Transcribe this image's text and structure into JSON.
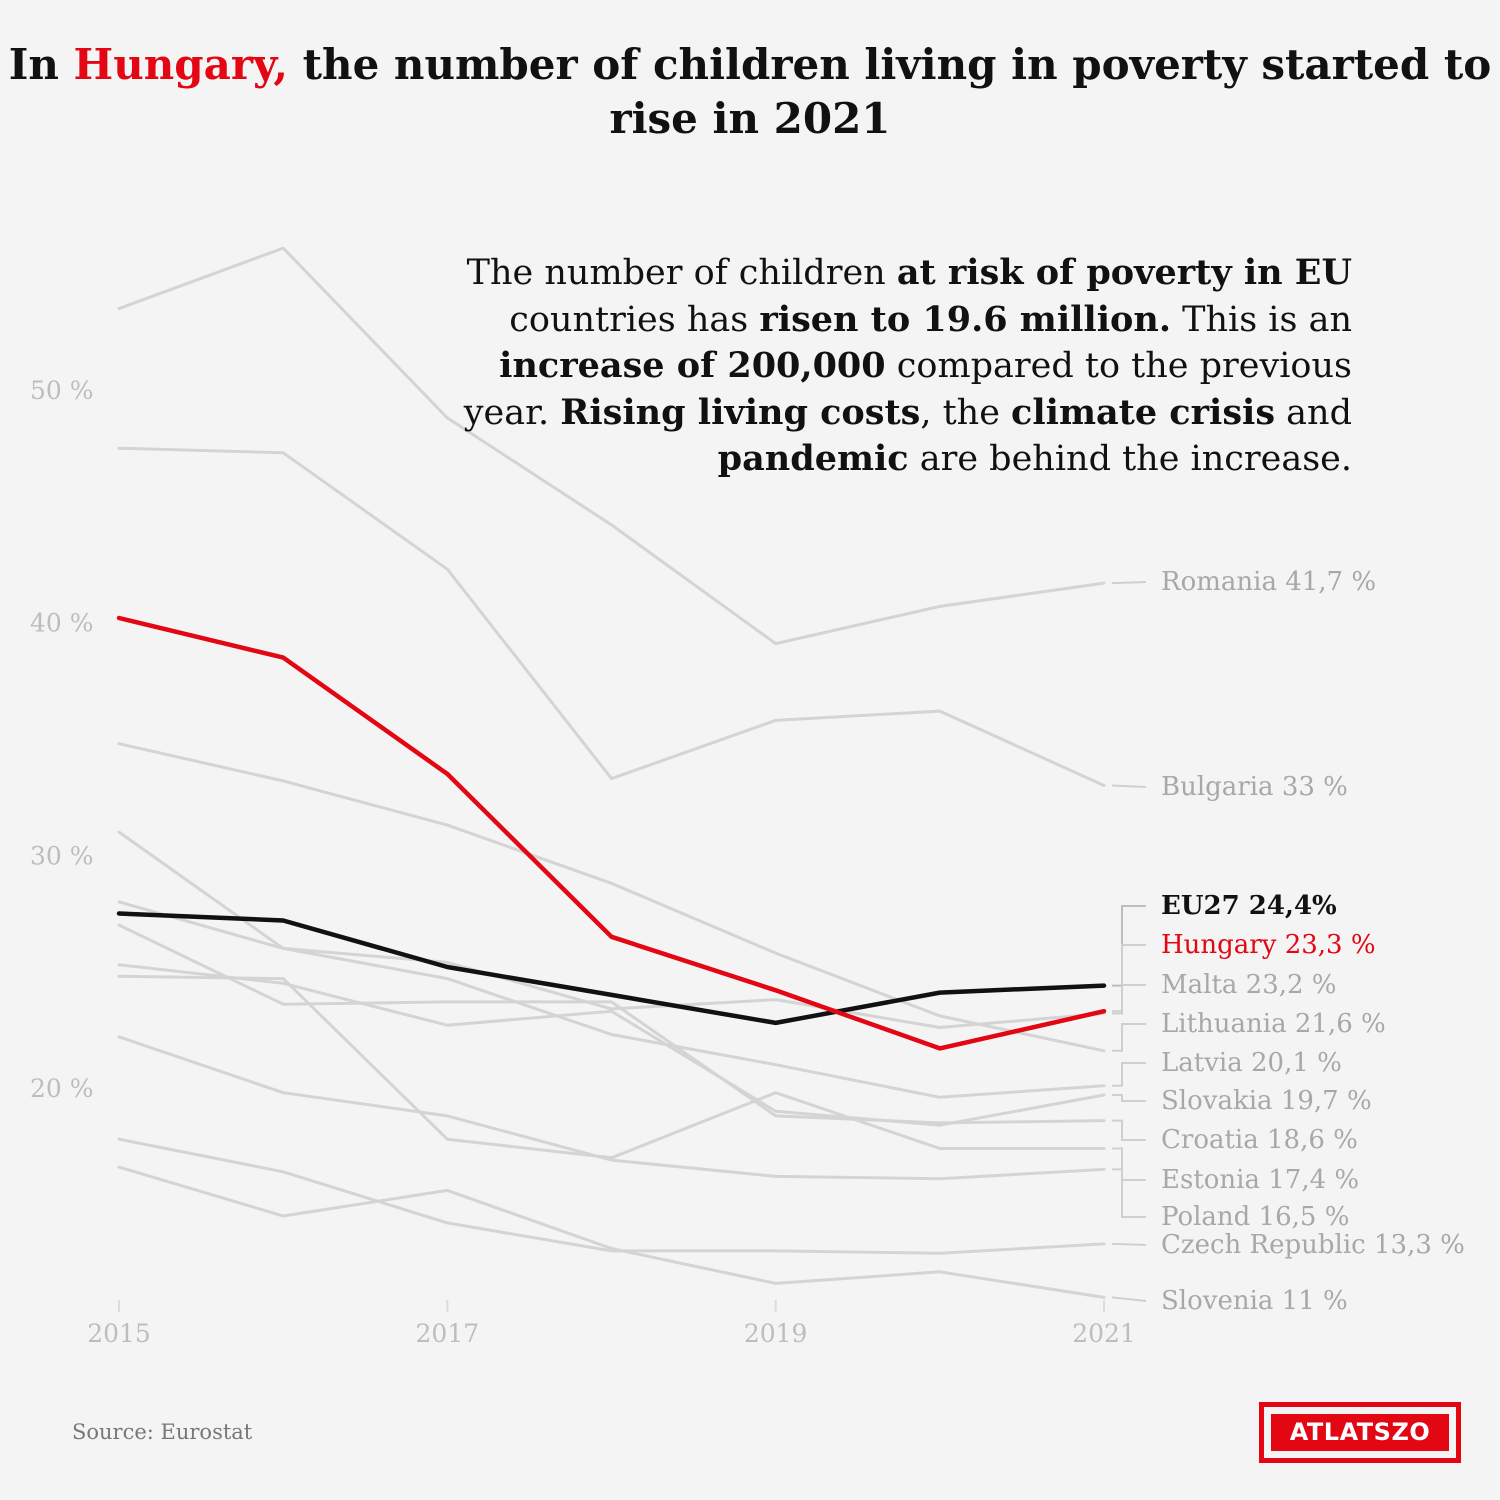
{
  "title": {
    "prefix": "In",
    "highlight": "Hungary,",
    "rest": "the number of children living in poverty started to rise in 2021"
  },
  "annotation": {
    "t1": "The number of children ",
    "b1": "at risk of poverty in EU",
    "t2": " countries has ",
    "b2": "risen to 19.6 million.",
    "t3": " This is an ",
    "b3": "increase of 200,000",
    "t4": " compared to the previous year. ",
    "b4": "Rising living costs",
    "t5": ", the ",
    "b5": "climate crisis",
    "t6": " and ",
    "b6": "pandemic",
    "t7": " are behind the increase."
  },
  "source": "Source: Eurostat",
  "logo": "ATLATSZO",
  "colors": {
    "background": "#f4f4f4",
    "highlight": "#e30613",
    "eu": "#111111",
    "others": "#d4d4d4",
    "axis_text": "#bdbdbd",
    "label_text": "#a8a8a8"
  },
  "chart_data": {
    "type": "line",
    "title": "In Hungary, the number of children living in poverty started to rise in 2021",
    "xlabel": "",
    "ylabel": "",
    "x": [
      2015,
      2016,
      2017,
      2018,
      2019,
      2020,
      2021
    ],
    "x_ticks": [
      "2015",
      "2017",
      "2019",
      "2021"
    ],
    "y_ticks": [
      "20 %",
      "30 %",
      "40 %",
      "50 %"
    ],
    "ylim": [
      8,
      58
    ],
    "xlim": [
      2015,
      2021
    ],
    "grid": false,
    "legend": "direct labels at line ends (right)",
    "series": [
      {
        "name": "Romania",
        "label_value": "41,7 %",
        "role": "other",
        "values": [
          53.5,
          56.1,
          48.8,
          44.2,
          39.1,
          40.7,
          41.7
        ]
      },
      {
        "name": "Bulgaria",
        "label_value": "33 %",
        "role": "other",
        "values": [
          47.5,
          47.3,
          42.3,
          33.3,
          35.8,
          36.2,
          33.0
        ]
      },
      {
        "name": "EU27",
        "label_value": "24,4%",
        "role": "eu",
        "values": [
          27.5,
          27.2,
          25.2,
          24.0,
          22.8,
          24.1,
          24.4
        ]
      },
      {
        "name": "Hungary",
        "label_value": "23,3 %",
        "role": "highlight",
        "values": [
          40.2,
          38.5,
          33.5,
          26.5,
          24.2,
          21.7,
          23.3
        ]
      },
      {
        "name": "Malta",
        "label_value": "23,2 %",
        "role": "other",
        "values": [
          28.0,
          26.0,
          25.4,
          23.4,
          23.8,
          22.6,
          23.2
        ]
      },
      {
        "name": "Lithuania",
        "label_value": "21,6 %",
        "role": "other",
        "values": [
          34.8,
          33.2,
          31.3,
          28.8,
          25.8,
          23.1,
          21.6
        ]
      },
      {
        "name": "Latvia",
        "label_value": "20,1 %",
        "role": "other",
        "values": [
          31.0,
          26.0,
          24.7,
          22.3,
          21.0,
          19.6,
          20.1
        ]
      },
      {
        "name": "Slovakia",
        "label_value": "19,7 %",
        "role": "other",
        "values": [
          25.3,
          24.5,
          22.7,
          23.3,
          19.0,
          18.4,
          19.7
        ]
      },
      {
        "name": "Croatia",
        "label_value": "18,6 %",
        "role": "other",
        "values": [
          27.0,
          23.6,
          23.7,
          23.7,
          18.8,
          18.5,
          18.6
        ]
      },
      {
        "name": "Estonia",
        "label_value": "17,4 %",
        "role": "other",
        "values": [
          24.8,
          24.7,
          17.8,
          17.0,
          19.8,
          17.4,
          17.4
        ]
      },
      {
        "name": "Poland",
        "label_value": "16,5 %",
        "role": "other",
        "values": [
          22.2,
          19.8,
          18.8,
          16.9,
          16.2,
          16.1,
          16.5
        ]
      },
      {
        "name": "Czech Republic",
        "label_value": "13,3 %",
        "role": "other",
        "values": [
          17.8,
          16.4,
          14.2,
          13.0,
          13.0,
          12.9,
          13.3
        ]
      },
      {
        "name": "Slovenia",
        "label_value": "11 %",
        "role": "other",
        "values": [
          16.6,
          14.5,
          15.6,
          13.1,
          11.6,
          12.1,
          11.0
        ]
      }
    ]
  }
}
